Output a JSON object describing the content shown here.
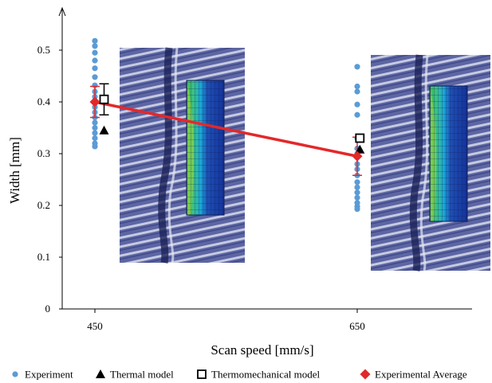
{
  "chart_data": {
    "type": "scatter",
    "title": "",
    "xlabel": "Scan speed [mm/s]",
    "ylabel": "Width [mm]",
    "xticks": [
      "450",
      "650"
    ],
    "yticks": [
      "0",
      "0.1",
      "0.2",
      "0.3",
      "0.4",
      "0.5"
    ],
    "ylim": [
      0,
      0.55
    ],
    "grid": false,
    "legend_position": "bottom",
    "series": [
      {
        "name": "Experiment",
        "marker": "circle",
        "color": "#5b9bd5",
        "points": [
          {
            "x": 450,
            "y": 0.518
          },
          {
            "x": 450,
            "y": 0.508
          },
          {
            "x": 450,
            "y": 0.495
          },
          {
            "x": 450,
            "y": 0.48
          },
          {
            "x": 450,
            "y": 0.465
          },
          {
            "x": 450,
            "y": 0.448
          },
          {
            "x": 450,
            "y": 0.432
          },
          {
            "x": 450,
            "y": 0.42
          },
          {
            "x": 450,
            "y": 0.41
          },
          {
            "x": 450,
            "y": 0.4
          },
          {
            "x": 450,
            "y": 0.39
          },
          {
            "x": 450,
            "y": 0.38
          },
          {
            "x": 450,
            "y": 0.37
          },
          {
            "x": 450,
            "y": 0.36
          },
          {
            "x": 450,
            "y": 0.35
          },
          {
            "x": 450,
            "y": 0.34
          },
          {
            "x": 450,
            "y": 0.33
          },
          {
            "x": 450,
            "y": 0.32
          },
          {
            "x": 450,
            "y": 0.314
          },
          {
            "x": 650,
            "y": 0.468
          },
          {
            "x": 650,
            "y": 0.43
          },
          {
            "x": 650,
            "y": 0.42
          },
          {
            "x": 650,
            "y": 0.395
          },
          {
            "x": 650,
            "y": 0.375
          },
          {
            "x": 650,
            "y": 0.33
          },
          {
            "x": 650,
            "y": 0.31
          },
          {
            "x": 650,
            "y": 0.3
          },
          {
            "x": 650,
            "y": 0.28
          },
          {
            "x": 650,
            "y": 0.27
          },
          {
            "x": 650,
            "y": 0.258
          },
          {
            "x": 650,
            "y": 0.245
          },
          {
            "x": 650,
            "y": 0.235
          },
          {
            "x": 650,
            "y": 0.225
          },
          {
            "x": 650,
            "y": 0.215
          },
          {
            "x": 650,
            "y": 0.205
          },
          {
            "x": 650,
            "y": 0.198
          },
          {
            "x": 650,
            "y": 0.193
          }
        ]
      },
      {
        "name": "Thermal model",
        "marker": "triangle",
        "color": "#000000",
        "points": [
          {
            "x": 457,
            "y": 0.345
          },
          {
            "x": 652,
            "y": 0.308
          }
        ]
      },
      {
        "name": "Thermomechanical model",
        "marker": "square-open",
        "color": "#000000",
        "points": [
          {
            "x": 457,
            "y": 0.405,
            "err": 0.03
          },
          {
            "x": 652,
            "y": 0.33
          }
        ]
      },
      {
        "name": "Experimental Average",
        "marker": "diamond",
        "color": "#e3282a",
        "line": true,
        "points": [
          {
            "x": 450,
            "y": 0.4,
            "err": 0.03
          },
          {
            "x": 650,
            "y": 0.295,
            "err": 0.037
          }
        ]
      }
    ]
  }
}
